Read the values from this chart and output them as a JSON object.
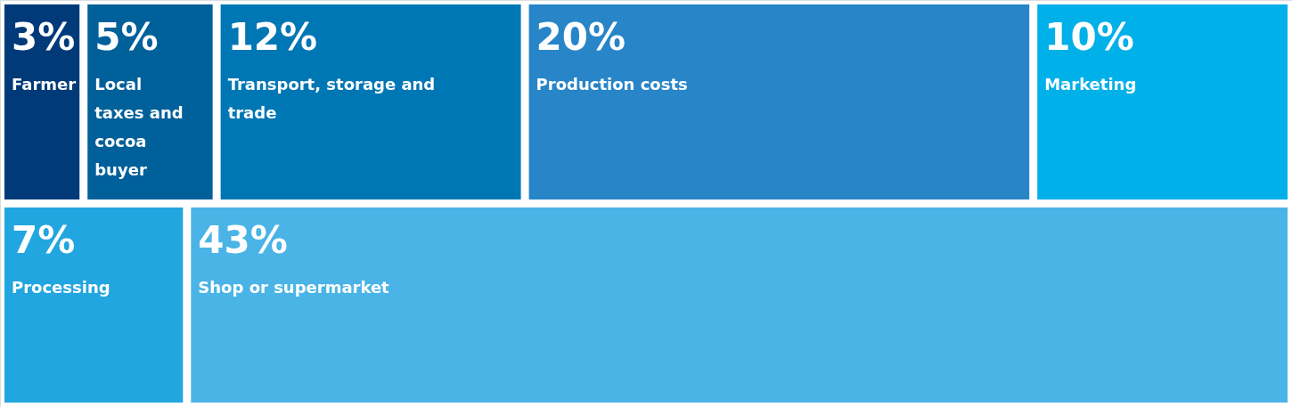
{
  "chart_data": {
    "type": "other",
    "categories": [
      "Farmer",
      "Local taxes and cocoa buyer",
      "Transport, storage and trade",
      "Production costs",
      "Marketing",
      "Processing",
      "Shop or supermarket"
    ],
    "values": [
      3,
      5,
      12,
      20,
      10,
      7,
      43
    ],
    "value_labels": [
      "3%",
      "5%",
      "12%",
      "20%",
      "10%",
      "7%",
      "43%"
    ],
    "colors": [
      "#003a78",
      "#00609a",
      "#0077b5",
      "#2785c8",
      "#00b0e8",
      "#22a6df",
      "#4ab4e6"
    ]
  }
}
